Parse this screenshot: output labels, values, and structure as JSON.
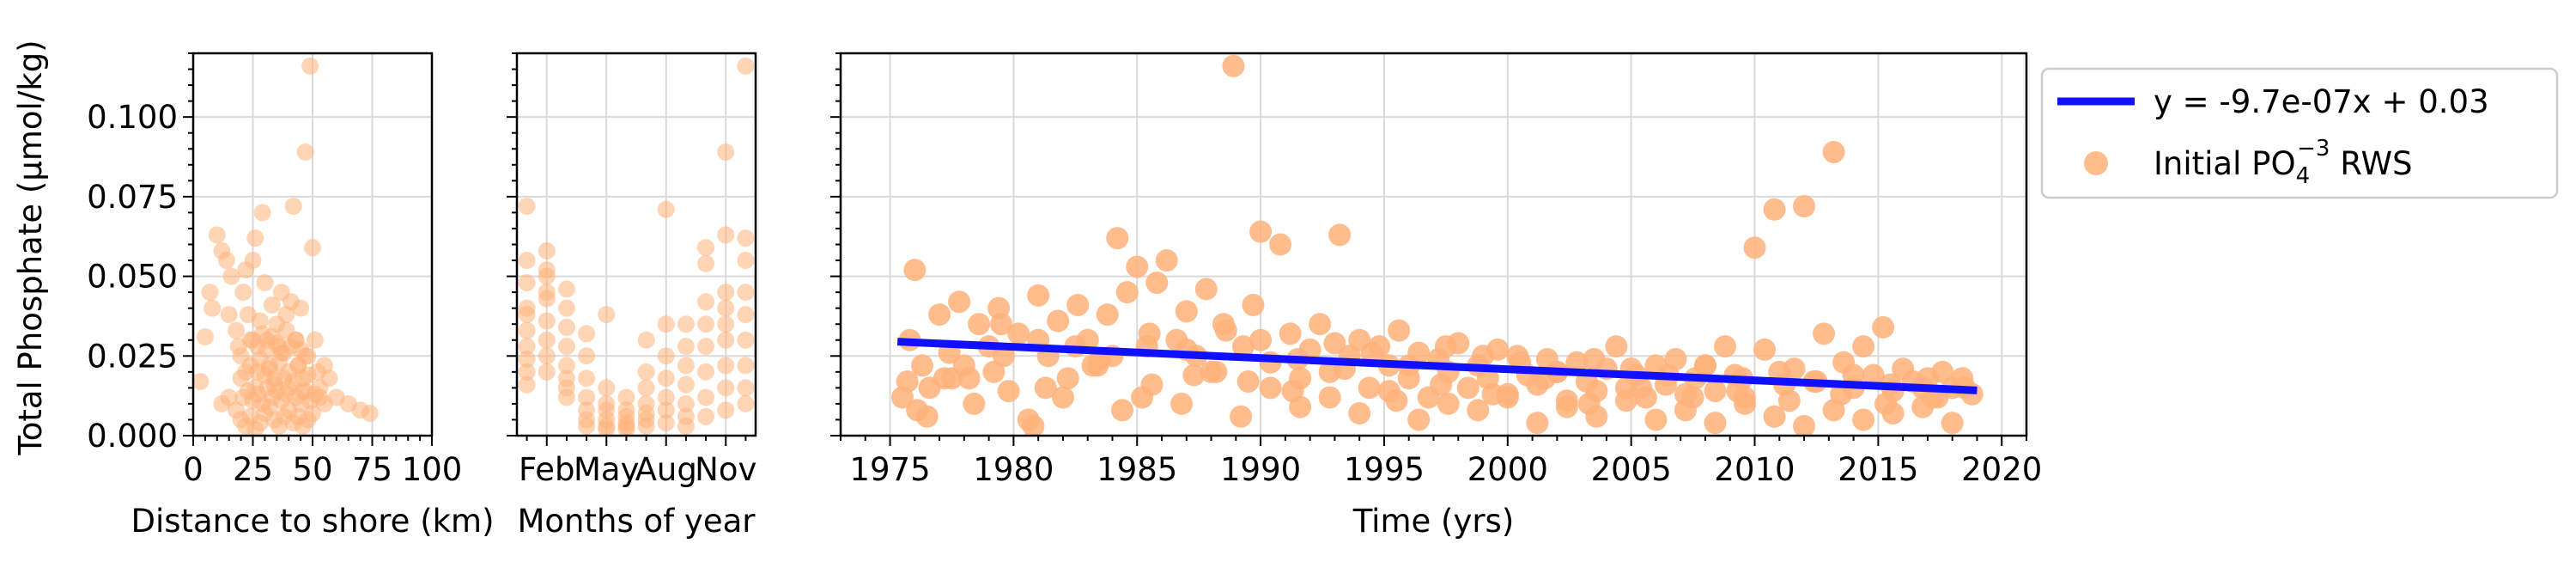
{
  "figure": {
    "ylabel": "Total Phosphate (μmol/kg)",
    "point_color": "#FFB27A",
    "trend_color": "#1010FF",
    "ylim": [
      0,
      0.12
    ],
    "yticks": [
      0.0,
      0.025,
      0.05,
      0.075,
      0.1
    ],
    "ytick_labels": [
      "0.000",
      "0.025",
      "0.050",
      "0.075",
      "0.100"
    ]
  },
  "legend": {
    "trend_label": "y = -9.7e-07x + 0.03",
    "points_label_prefix": "Initial PO",
    "points_label_sub": "4",
    "points_label_sup": "−3",
    "points_label_suffix": " RWS",
    "placement": "outside-right"
  },
  "chart_data": [
    {
      "type": "scatter",
      "xlabel": "Distance to shore (km)",
      "xlim": [
        0,
        100
      ],
      "xticks": [
        0,
        25,
        50,
        75,
        100
      ],
      "xtick_labels": [
        "0",
        "25",
        "50",
        "75",
        "100"
      ],
      "ylim": [
        0,
        0.12
      ],
      "grid": true,
      "x": [
        3,
        5,
        7,
        8,
        10,
        12,
        14,
        15,
        16,
        18,
        19,
        20,
        21,
        22,
        23,
        24,
        25,
        26,
        27,
        28,
        29,
        30,
        31,
        32,
        33,
        34,
        35,
        36,
        37,
        38,
        39,
        40,
        41,
        42,
        43,
        44,
        45,
        46,
        47,
        48,
        49,
        50,
        51,
        52,
        53,
        55,
        57,
        60,
        65,
        70,
        74,
        12,
        15,
        18,
        20,
        22,
        24,
        26,
        28,
        30,
        32,
        34,
        36,
        38,
        40,
        42,
        44,
        46,
        48,
        50,
        20,
        22,
        24,
        26,
        28,
        30,
        32,
        34,
        36,
        38,
        40,
        42,
        44,
        46,
        48,
        25,
        27,
        29,
        31,
        33,
        35,
        37,
        39,
        41,
        43,
        45,
        47,
        21,
        23,
        25,
        27,
        29,
        31,
        33,
        35,
        37,
        39,
        43,
        45,
        47,
        49,
        51,
        53,
        55
      ],
      "y": [
        0.017,
        0.031,
        0.045,
        0.04,
        0.063,
        0.058,
        0.055,
        0.038,
        0.05,
        0.033,
        0.028,
        0.025,
        0.045,
        0.052,
        0.038,
        0.03,
        0.055,
        0.062,
        0.02,
        0.036,
        0.07,
        0.048,
        0.03,
        0.022,
        0.041,
        0.018,
        0.035,
        0.028,
        0.045,
        0.026,
        0.038,
        0.015,
        0.042,
        0.072,
        0.03,
        0.022,
        0.04,
        0.018,
        0.089,
        0.025,
        0.116,
        0.059,
        0.03,
        0.02,
        0.015,
        0.022,
        0.018,
        0.012,
        0.01,
        0.008,
        0.007,
        0.01,
        0.012,
        0.008,
        0.005,
        0.003,
        0.006,
        0.002,
        0.004,
        0.007,
        0.009,
        0.005,
        0.003,
        0.006,
        0.008,
        0.004,
        0.006,
        0.003,
        0.005,
        0.007,
        0.018,
        0.02,
        0.022,
        0.015,
        0.024,
        0.019,
        0.021,
        0.016,
        0.023,
        0.018,
        0.02,
        0.017,
        0.022,
        0.014,
        0.019,
        0.03,
        0.028,
        0.032,
        0.027,
        0.031,
        0.029,
        0.026,
        0.033,
        0.028,
        0.03,
        0.027,
        0.025,
        0.012,
        0.014,
        0.011,
        0.013,
        0.01,
        0.015,
        0.012,
        0.014,
        0.011,
        0.013,
        0.012,
        0.01,
        0.014,
        0.011,
        0.013,
        0.012,
        0.01
      ]
    },
    {
      "type": "scatter",
      "xlabel": "Months of year",
      "xlim": [
        0.5,
        12.5
      ],
      "xticks": [
        2,
        5,
        8,
        11
      ],
      "xtick_labels": [
        "Feb",
        "May",
        "Aug",
        "Nov"
      ],
      "ylim": [
        0,
        0.12
      ],
      "grid": true,
      "x": [
        1,
        1,
        1,
        1,
        1,
        1,
        1,
        1,
        1,
        1,
        2,
        2,
        2,
        2,
        2,
        2,
        2,
        2,
        2,
        3,
        3,
        3,
        3,
        3,
        3,
        3,
        3,
        4,
        4,
        4,
        4,
        4,
        4,
        4,
        5,
        5,
        5,
        5,
        5,
        5,
        5,
        6,
        6,
        6,
        6,
        6,
        6,
        7,
        7,
        7,
        7,
        7,
        7,
        7,
        8,
        8,
        8,
        8,
        8,
        8,
        8,
        9,
        9,
        9,
        9,
        9,
        9,
        9,
        10,
        10,
        10,
        10,
        10,
        10,
        10,
        10,
        11,
        11,
        11,
        11,
        11,
        11,
        11,
        11,
        11,
        12,
        12,
        12,
        12,
        12,
        12,
        12,
        12,
        12
      ],
      "y": [
        0.072,
        0.055,
        0.048,
        0.04,
        0.033,
        0.028,
        0.024,
        0.02,
        0.016,
        0.038,
        0.058,
        0.05,
        0.043,
        0.036,
        0.03,
        0.025,
        0.02,
        0.045,
        0.052,
        0.046,
        0.04,
        0.034,
        0.028,
        0.022,
        0.018,
        0.015,
        0.012,
        0.032,
        0.025,
        0.018,
        0.012,
        0.008,
        0.005,
        0.003,
        0.038,
        0.015,
        0.01,
        0.008,
        0.005,
        0.003,
        0.002,
        0.012,
        0.008,
        0.006,
        0.004,
        0.003,
        0.002,
        0.03,
        0.02,
        0.015,
        0.01,
        0.007,
        0.005,
        0.003,
        0.071,
        0.035,
        0.025,
        0.018,
        0.012,
        0.008,
        0.004,
        0.035,
        0.028,
        0.022,
        0.016,
        0.01,
        0.006,
        0.003,
        0.059,
        0.054,
        0.042,
        0.035,
        0.028,
        0.02,
        0.012,
        0.006,
        0.089,
        0.063,
        0.045,
        0.04,
        0.035,
        0.03,
        0.022,
        0.015,
        0.008,
        0.116,
        0.062,
        0.055,
        0.045,
        0.038,
        0.03,
        0.022,
        0.015,
        0.01
      ]
    },
    {
      "type": "scatter",
      "xlabel": "Time (yrs)",
      "xlim": [
        1973,
        2021
      ],
      "xticks": [
        1975,
        1980,
        1985,
        1990,
        1995,
        2000,
        2005,
        2010,
        2015,
        2020
      ],
      "xtick_labels": [
        "1975",
        "1980",
        "1985",
        "1990",
        "1995",
        "2000",
        "2005",
        "2010",
        "2015",
        "2020"
      ],
      "ylim": [
        0,
        0.12
      ],
      "grid": true,
      "trend": {
        "x0": 1975.3,
        "y0": 0.0295,
        "x1": 2019.0,
        "y1": 0.0142
      },
      "x": [
        1975.5,
        1975.8,
        1976.0,
        1976.3,
        1976.6,
        1977.0,
        1977.4,
        1977.8,
        1978.2,
        1978.6,
        1979.0,
        1979.4,
        1979.8,
        1980.2,
        1980.6,
        1981.0,
        1981.4,
        1981.8,
        1982.2,
        1982.6,
        1983.0,
        1983.4,
        1983.8,
        1984.2,
        1984.6,
        1985.0,
        1985.4,
        1985.8,
        1986.2,
        1986.6,
        1987.0,
        1987.4,
        1987.8,
        1988.2,
        1988.6,
        1988.9,
        1989.3,
        1989.7,
        1990.0,
        1990.4,
        1990.8,
        1991.2,
        1991.6,
        1992.0,
        1992.4,
        1992.8,
        1993.2,
        1993.6,
        1994.0,
        1994.4,
        1994.8,
        1995.2,
        1995.6,
        1996.0,
        1996.4,
        1996.8,
        1997.2,
        1997.6,
        1998.0,
        1998.4,
        1998.8,
        1999.2,
        1999.6,
        2000.0,
        2000.4,
        2000.8,
        2001.2,
        2001.6,
        2002.0,
        2002.4,
        2002.8,
        2003.2,
        2003.6,
        2004.0,
        2004.4,
        2004.8,
        2005.2,
        2005.6,
        2006.0,
        2006.4,
        2006.8,
        2007.2,
        2007.6,
        2008.0,
        2008.4,
        2008.8,
        2009.2,
        2009.6,
        2010.0,
        2010.4,
        2010.8,
        2011.2,
        2011.6,
        2012.0,
        2012.4,
        2012.8,
        2013.2,
        2013.6,
        2014.0,
        2014.4,
        2014.8,
        2015.2,
        2015.6,
        2016.0,
        2016.4,
        2016.8,
        2017.2,
        2017.6,
        2018.0,
        2018.4,
        2018.8,
        1976.1,
        1977.2,
        1978.4,
        1979.6,
        1980.8,
        1982.0,
        1983.2,
        1984.4,
        1985.6,
        1986.8,
        1988.0,
        1989.2,
        1990.4,
        1991.6,
        1992.8,
        1994.0,
        1995.2,
        1996.4,
        1997.6,
        1998.8,
        2000.0,
        2001.2,
        2002.4,
        2003.6,
        2004.8,
        2006.0,
        2007.2,
        2008.4,
        2009.6,
        2010.8,
        2012.0,
        2013.2,
        2014.4,
        2015.6,
        2016.8,
        2018.0,
        1976.5,
        1978.0,
        1979.5,
        1981.0,
        1982.5,
        1984.0,
        1985.5,
        1987.0,
        1988.5,
        1990.0,
        1991.5,
        1993.0,
        1994.5,
        1996.0,
        1997.5,
        1999.0,
        2000.5,
        2002.0,
        2003.5,
        2005.0,
        2006.5,
        2008.0,
        2009.5,
        2011.0,
        2012.5,
        2014.0,
        2015.5,
        2017.0,
        2018.5,
        1975.7,
        1977.5,
        1979.2,
        1981.3,
        1983.5,
        1985.2,
        1987.3,
        1989.5,
        1991.3,
        1993.4,
        1995.5,
        1997.3,
        1999.4,
        2001.5,
        2003.3,
        2005.4,
        2007.5,
        2009.3,
        2011.4,
        2013.5,
        2015.3,
        2017.4
      ],
      "y": [
        0.012,
        0.03,
        0.052,
        0.022,
        0.015,
        0.038,
        0.026,
        0.042,
        0.018,
        0.035,
        0.028,
        0.04,
        0.014,
        0.032,
        0.005,
        0.044,
        0.025,
        0.036,
        0.018,
        0.041,
        0.03,
        0.022,
        0.038,
        0.062,
        0.045,
        0.053,
        0.028,
        0.048,
        0.055,
        0.03,
        0.039,
        0.025,
        0.046,
        0.02,
        0.033,
        0.116,
        0.028,
        0.041,
        0.064,
        0.023,
        0.06,
        0.032,
        0.018,
        0.027,
        0.035,
        0.02,
        0.063,
        0.025,
        0.03,
        0.015,
        0.028,
        0.022,
        0.033,
        0.018,
        0.026,
        0.012,
        0.024,
        0.02,
        0.029,
        0.015,
        0.022,
        0.018,
        0.027,
        0.013,
        0.025,
        0.019,
        0.016,
        0.024,
        0.02,
        0.011,
        0.023,
        0.017,
        0.014,
        0.021,
        0.028,
        0.015,
        0.019,
        0.012,
        0.022,
        0.016,
        0.024,
        0.013,
        0.018,
        0.022,
        0.014,
        0.028,
        0.019,
        0.012,
        0.059,
        0.027,
        0.071,
        0.016,
        0.021,
        0.072,
        0.017,
        0.032,
        0.089,
        0.023,
        0.015,
        0.028,
        0.019,
        0.034,
        0.014,
        0.021,
        0.017,
        0.015,
        0.012,
        0.02,
        0.015,
        0.018,
        0.013,
        0.008,
        0.018,
        0.01,
        0.025,
        0.003,
        0.012,
        0.022,
        0.008,
        0.016,
        0.01,
        0.02,
        0.006,
        0.015,
        0.009,
        0.012,
        0.007,
        0.014,
        0.005,
        0.01,
        0.008,
        0.012,
        0.004,
        0.009,
        0.006,
        0.011,
        0.005,
        0.008,
        0.004,
        0.01,
        0.006,
        0.003,
        0.008,
        0.005,
        0.007,
        0.009,
        0.004,
        0.006,
        0.022,
        0.035,
        0.03,
        0.028,
        0.025,
        0.032,
        0.027,
        0.035,
        0.03,
        0.024,
        0.029,
        0.026,
        0.022,
        0.028,
        0.025,
        0.023,
        0.02,
        0.024,
        0.021,
        0.019,
        0.022,
        0.018,
        0.02,
        0.017,
        0.019,
        0.016,
        0.018,
        0.015,
        0.017,
        0.018,
        0.02,
        0.015,
        0.024,
        0.012,
        0.019,
        0.017,
        0.014,
        0.021,
        0.011,
        0.016,
        0.013,
        0.018,
        0.01,
        0.015,
        0.012,
        0.014,
        0.011,
        0.013,
        0.01,
        0.012
      ]
    }
  ]
}
